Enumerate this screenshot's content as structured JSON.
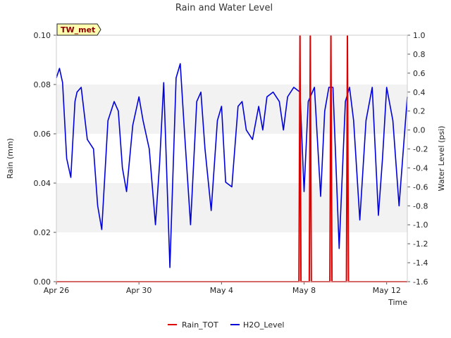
{
  "chart_data": {
    "type": "line",
    "title": "Rain and Water Level",
    "badge": "TW_met",
    "xlabel": "Time",
    "ylabel_left": "Rain (mm)",
    "ylabel_right": "Water Level (psi)",
    "x_range": [
      "Apr 26",
      "May 13"
    ],
    "x_ticks": [
      "Apr 26",
      "Apr 30",
      "May 4",
      "May 8",
      "May 12"
    ],
    "ylim_left": [
      0,
      0.1
    ],
    "yticks_left": [
      "0.00",
      "0.02",
      "0.04",
      "0.06",
      "0.08",
      "0.10"
    ],
    "ylim_right": [
      -1.6,
      1.0
    ],
    "yticks_right": [
      "-1.6",
      "-1.4",
      "-1.2",
      "-1.0",
      "-0.8",
      "-0.6",
      "-0.4",
      "-0.2",
      "0.0",
      "0.2",
      "0.4",
      "0.6",
      "0.8",
      "1.0"
    ],
    "grid": "horizontal shaded bands",
    "legend_position": "bottom-center",
    "series": [
      {
        "name": "Rain_TOT",
        "axis": "left",
        "color": "#dd0000",
        "x": [
          "Apr 26",
          "May 7.75",
          "May 7.8",
          "May 7.85",
          "May 8.25",
          "May 8.3",
          "May 8.35",
          "May 9.25",
          "May 9.3",
          "May 9.35",
          "May 10.05",
          "May 10.1",
          "May 10.15",
          "May 13"
        ],
        "y": [
          0,
          0,
          0.1,
          0,
          0,
          0.1,
          0,
          0,
          0.1,
          0,
          0,
          0.1,
          0,
          0
        ]
      },
      {
        "name": "H2O_Level",
        "axis": "right",
        "color": "#0000dd",
        "x": [
          0,
          0.15,
          0.3,
          0.5,
          0.7,
          0.9,
          1.0,
          1.2,
          1.5,
          1.8,
          2.0,
          2.2,
          2.5,
          2.8,
          3.0,
          3.2,
          3.4,
          3.7,
          4.0,
          4.2,
          4.5,
          4.8,
          5.0,
          5.2,
          5.5,
          5.8,
          6.0,
          6.2,
          6.5,
          6.8,
          7.0,
          7.2,
          7.5,
          7.8,
          8.0,
          8.2,
          8.5,
          8.8,
          9.0,
          9.2,
          9.5,
          9.8,
          10.0,
          10.2,
          10.5,
          10.8,
          11.0,
          11.2,
          11.5,
          11.8,
          12.0,
          12.2,
          12.5,
          12.8,
          13.0,
          13.2,
          13.4,
          13.7,
          14.0,
          14.2,
          14.4,
          14.7,
          15.0,
          15.3,
          15.6,
          15.8,
          16.0,
          16.3,
          16.6,
          17.0
        ],
        "y": [
          0.55,
          0.65,
          0.5,
          -0.3,
          -0.5,
          0.3,
          0.4,
          0.45,
          -0.1,
          -0.2,
          -0.8,
          -1.05,
          0.1,
          0.3,
          0.2,
          -0.4,
          -0.65,
          0.05,
          0.35,
          0.1,
          -0.2,
          -1.0,
          -0.35,
          0.5,
          -1.45,
          0.55,
          0.7,
          0.0,
          -1.0,
          0.3,
          0.4,
          -0.2,
          -0.85,
          0.1,
          0.25,
          -0.55,
          -0.6,
          0.25,
          0.3,
          0.0,
          -0.1,
          0.25,
          0.0,
          0.35,
          0.4,
          0.3,
          0.0,
          0.35,
          0.45,
          0.4,
          -0.65,
          0.3,
          0.45,
          -0.7,
          0.2,
          0.45,
          0.45,
          -1.25,
          0.3,
          0.45,
          0.1,
          -0.95,
          0.1,
          0.45,
          -0.9,
          -0.3,
          0.45,
          0.1,
          -0.8,
          0.35
        ]
      }
    ]
  }
}
